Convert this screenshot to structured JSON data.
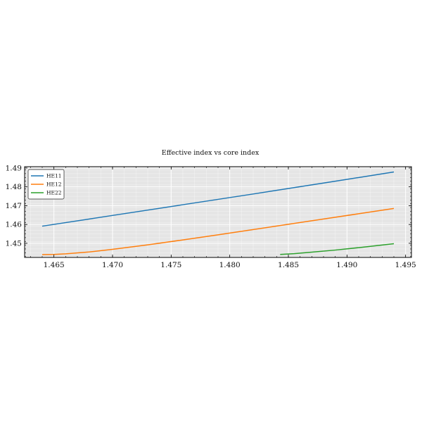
{
  "chart_data": {
    "type": "line",
    "title": "Effective index vs core index",
    "xlabel": "",
    "ylabel": "",
    "xlim": [
      1.4625,
      1.4955
    ],
    "ylim": [
      1.4425,
      1.4907
    ],
    "xticks": [
      "1.465",
      "1.470",
      "1.475",
      "1.480",
      "1.485",
      "1.490",
      "1.495"
    ],
    "xtick_values": [
      1.465,
      1.47,
      1.475,
      1.48,
      1.485,
      1.49,
      1.495
    ],
    "yticks": [
      "1.45",
      "1.46",
      "1.47",
      "1.48",
      "1.49"
    ],
    "ytick_values": [
      1.45,
      1.46,
      1.47,
      1.48,
      1.49
    ],
    "grid": true,
    "legend_position": "top-left",
    "colors": {
      "background": "#e5e5e5",
      "grid": "#ffffff"
    },
    "series": [
      {
        "name": "HE11",
        "color": "#1f77b4",
        "x": [
          1.464,
          1.47,
          1.476,
          1.482,
          1.488,
          1.494
        ],
        "y": [
          1.4591,
          1.4648,
          1.4705,
          1.4762,
          1.482,
          1.4879
        ]
      },
      {
        "name": "HE12",
        "color": "#ff7f0e",
        "x": [
          1.464,
          1.465,
          1.466,
          1.468,
          1.47,
          1.473,
          1.476,
          1.479,
          1.482,
          1.485,
          1.488,
          1.491,
          1.494
        ],
        "y": [
          1.444,
          1.4441,
          1.4444,
          1.4454,
          1.4468,
          1.4492,
          1.4518,
          1.4545,
          1.4573,
          1.4601,
          1.4629,
          1.4657,
          1.4685
        ]
      },
      {
        "name": "HE22",
        "color": "#2ca02c",
        "x": [
          1.4843,
          1.4855,
          1.487,
          1.489,
          1.491,
          1.494
        ],
        "y": [
          1.4441,
          1.4445,
          1.4453,
          1.4464,
          1.4477,
          1.4498
        ]
      }
    ]
  }
}
